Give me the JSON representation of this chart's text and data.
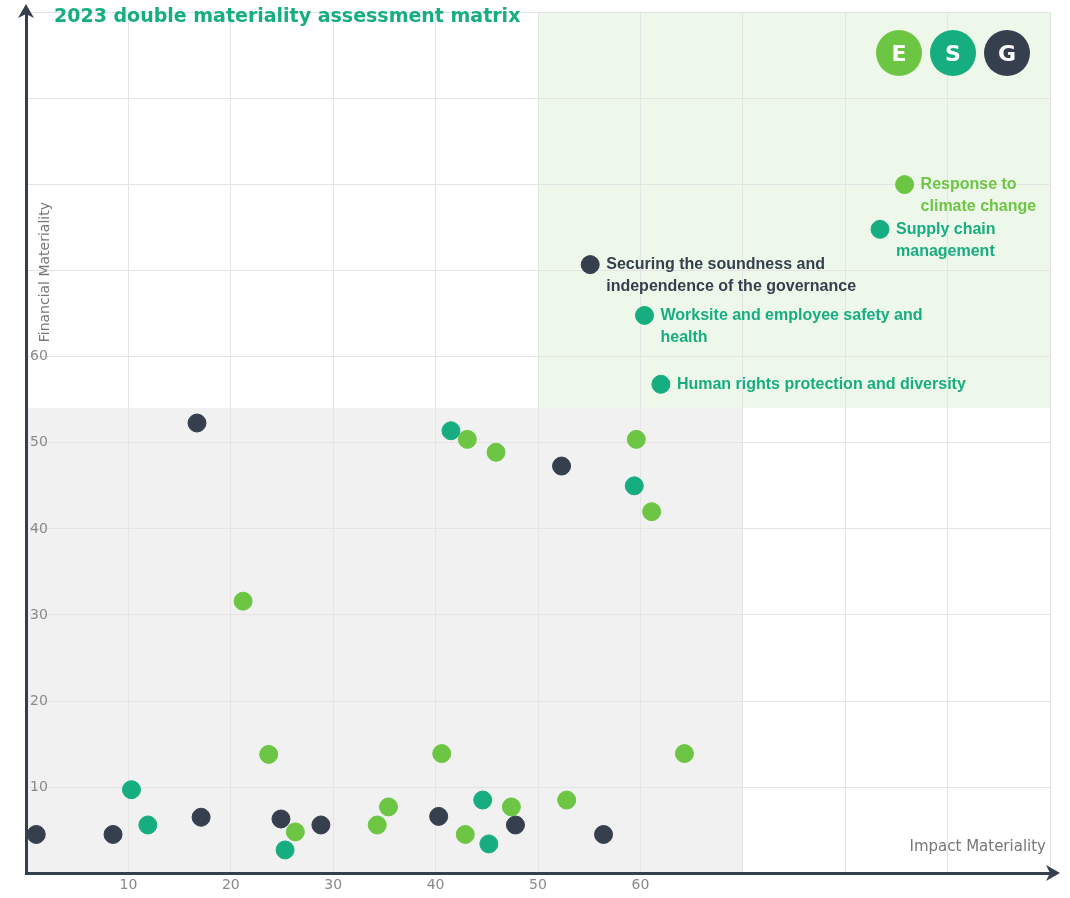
{
  "chart_data": {
    "type": "scatter",
    "title": "2023 double materiality assessment matrix",
    "xlabel": "Impact Materiality",
    "ylabel": "Financial Materiality",
    "xlim": [
      0,
      100
    ],
    "ylim": [
      0,
      100
    ],
    "xticks": [
      10,
      20,
      30,
      40,
      50,
      60,
      {
        "value": 70,
        "label": null
      },
      {
        "value": 80,
        "label": null
      },
      {
        "value": 90,
        "label": null
      },
      {
        "value": 100,
        "label": null
      }
    ],
    "yticks": [
      10,
      20,
      30,
      40,
      50,
      60,
      {
        "value": 70,
        "label": null
      },
      {
        "value": 80,
        "label": null
      },
      {
        "value": 90,
        "label": null
      },
      {
        "value": 100,
        "label": null
      }
    ],
    "grid": true,
    "legend": "top right",
    "marker": "circle",
    "series": [
      {
        "name": "E",
        "color": "#6cc644",
        "x": [
          85.8,
          21.2,
          23.7,
          26.3,
          34.3,
          35.4,
          40.6,
          43.1,
          42.9,
          45.9,
          47.4,
          52.8,
          59.6,
          61.1,
          64.3
        ],
        "values": [
          80.0,
          31.6,
          13.8,
          4.8,
          5.6,
          7.7,
          13.9,
          50.4,
          4.5,
          48.9,
          7.7,
          8.5,
          50.4,
          42.0,
          13.9
        ]
      },
      {
        "name": "S",
        "color": "#16ae80",
        "x": [
          83.4,
          60.4,
          62.0,
          10.3,
          11.9,
          25.3,
          41.5,
          44.6,
          45.2,
          59.4
        ],
        "values": [
          74.8,
          64.8,
          56.8,
          9.7,
          5.6,
          2.7,
          51.4,
          8.5,
          3.4,
          45.0
        ]
      },
      {
        "name": "G",
        "color": "#363f4d",
        "x": [
          55.1,
          1.0,
          8.5,
          16.7,
          17.1,
          24.9,
          28.8,
          40.3,
          47.8,
          52.3,
          56.4
        ],
        "values": [
          70.7,
          4.5,
          4.5,
          52.3,
          6.5,
          6.3,
          5.6,
          6.6,
          5.6,
          47.3,
          4.5
        ]
      }
    ],
    "annotations": [
      {
        "text": "Response to climate change",
        "x": 85.8,
        "y": 80.0
      },
      {
        "text": "Supply chain management",
        "x": 83.4,
        "y": 74.8
      },
      {
        "text": "Securing the soundness and independence of the governance",
        "x": 55.1,
        "y": 70.7
      },
      {
        "text": "Worksite and employee safety and health",
        "x": 60.4,
        "y": 64.8
      },
      {
        "text": "Human rights protection and diversity",
        "x": 62.0,
        "y": 56.8
      }
    ]
  }
}
